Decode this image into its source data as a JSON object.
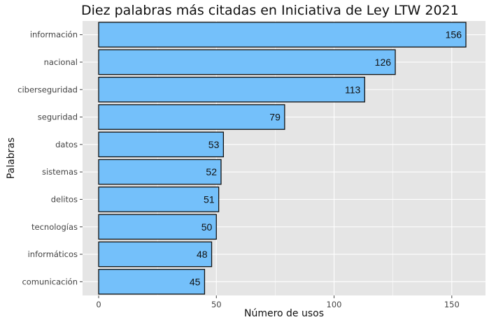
{
  "chart_data": {
    "type": "bar",
    "orientation": "horizontal",
    "title": "Diez palabras más citadas en Iniciativa de Ley LTW 2021",
    "xlabel": "Número de usos",
    "ylabel": "Palabras",
    "categories": [
      "información",
      "nacional",
      "ciberseguridad",
      "seguridad",
      "datos",
      "sistemas",
      "delitos",
      "tecnologías",
      "informáticos",
      "comunicación"
    ],
    "values": [
      156,
      126,
      113,
      79,
      53,
      52,
      51,
      50,
      48,
      45
    ],
    "xlim": [
      0,
      165
    ],
    "xticks": [
      0,
      50,
      100,
      150
    ],
    "grid": true,
    "colors": {
      "bar_fill": "#74C0FA",
      "bar_stroke": "#111111",
      "panel_background": "#E5E5E5",
      "grid": "#FFFFFF"
    }
  }
}
